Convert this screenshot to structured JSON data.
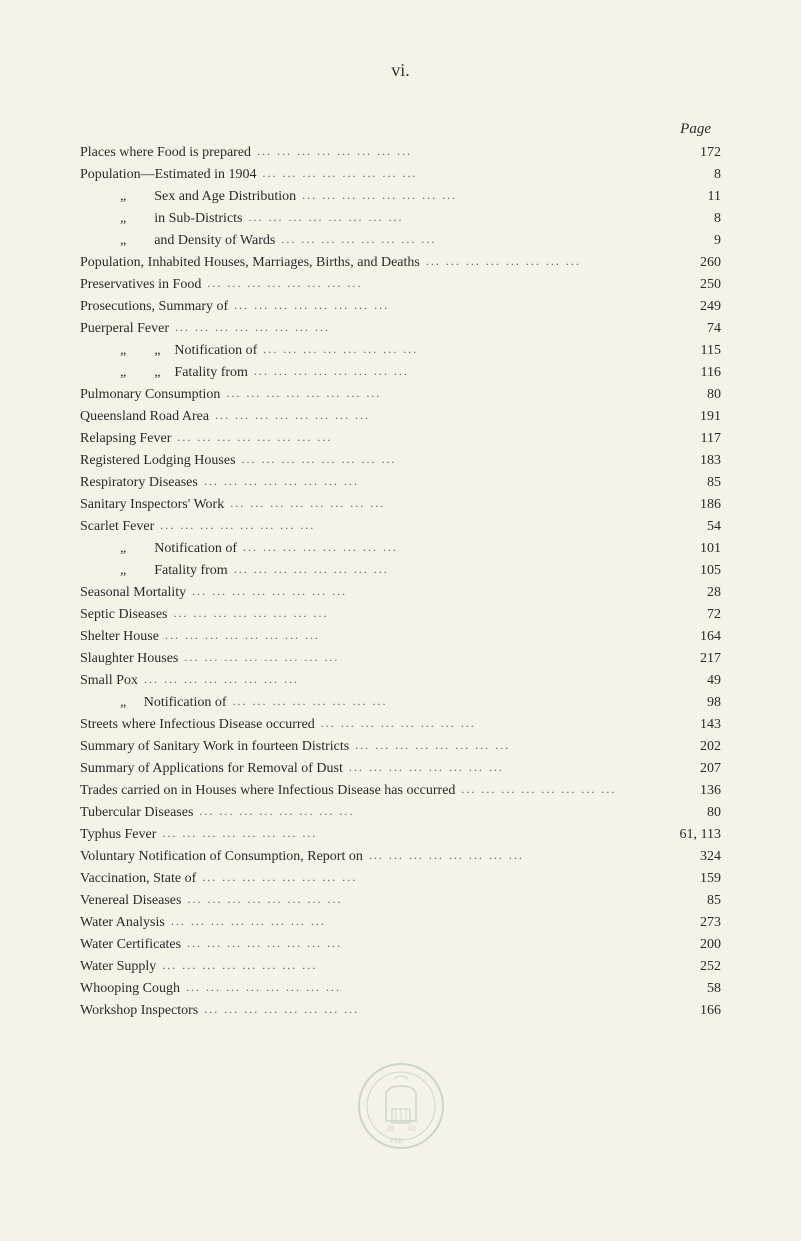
{
  "page_header_roman": "vi.",
  "page_col_heading": "Page",
  "entries": [
    {
      "label": "Places where Food is prepared",
      "page": "172",
      "indent": 0
    },
    {
      "label": "Population—Estimated in 1904",
      "page": "8",
      "indent": 0
    },
    {
      "label": "„        Sex and Age Distribution",
      "page": "11",
      "indent": 1
    },
    {
      "label": "„        in Sub-Districts",
      "page": "8",
      "indent": 1
    },
    {
      "label": "„        and Density of Wards",
      "page": "9",
      "indent": 1
    },
    {
      "label": "Population, Inhabited Houses, Marriages, Births, and Deaths",
      "page": "260",
      "indent": 0
    },
    {
      "label": "Preservatives in Food",
      "page": "250",
      "indent": 0
    },
    {
      "label": "Prosecutions, Summary of",
      "page": "249",
      "indent": 0
    },
    {
      "label": "Puerperal Fever",
      "page": "74",
      "indent": 0
    },
    {
      "label": "„        „    Notification of",
      "page": "115",
      "indent": 1
    },
    {
      "label": "„        „    Fatality from",
      "page": "116",
      "indent": 1
    },
    {
      "label": "Pulmonary Consumption",
      "page": "80",
      "indent": 0
    },
    {
      "label": "Queensland Road Area",
      "page": "191",
      "indent": 0
    },
    {
      "label": "Relapsing Fever",
      "page": "117",
      "indent": 0
    },
    {
      "label": "Registered Lodging Houses",
      "page": "183",
      "indent": 0
    },
    {
      "label": "Respiratory Diseases",
      "page": "85",
      "indent": 0
    },
    {
      "label": "Sanitary Inspectors' Work",
      "page": "186",
      "indent": 0
    },
    {
      "label": "Scarlet Fever",
      "page": "54",
      "indent": 0
    },
    {
      "label": "„        Notification of",
      "page": "101",
      "indent": 1
    },
    {
      "label": "„        Fatality from",
      "page": "105",
      "indent": 1
    },
    {
      "label": "Seasonal Mortality",
      "page": "28",
      "indent": 0
    },
    {
      "label": "Septic Diseases",
      "page": "72",
      "indent": 0
    },
    {
      "label": "Shelter House",
      "page": "164",
      "indent": 0
    },
    {
      "label": "Slaughter Houses",
      "page": "217",
      "indent": 0
    },
    {
      "label": "Small Pox",
      "page": "49",
      "indent": 0
    },
    {
      "label": "„     Notification of",
      "page": "98",
      "indent": 1
    },
    {
      "label": "Streets where Infectious Disease occurred",
      "page": "143",
      "indent": 0
    },
    {
      "label": "Summary of Sanitary Work in fourteen Districts",
      "page": "202",
      "indent": 0
    },
    {
      "label": "Summary of Applications for Removal of Dust",
      "page": "207",
      "indent": 0
    },
    {
      "label": "Trades carried on in Houses where Infectious Disease has occurred",
      "page": "136",
      "indent": 0
    },
    {
      "label": "Tubercular Diseases",
      "page": "80",
      "indent": 0
    },
    {
      "label": "Typhus Fever",
      "page": "61, 113",
      "indent": 0
    },
    {
      "label": "Voluntary Notification of Consumption, Report on",
      "page": "324",
      "indent": 0
    },
    {
      "label": "Vaccination, State of",
      "page": "159",
      "indent": 0
    },
    {
      "label": "Venereal Diseases",
      "page": "85",
      "indent": 0
    },
    {
      "label": "Water Analysis",
      "page": "273",
      "indent": 0
    },
    {
      "label": "Water Certificates",
      "page": "200",
      "indent": 0
    },
    {
      "label": "Water Supply",
      "page": "252",
      "indent": 0
    },
    {
      "label": "Whooping Cough",
      "page": "58",
      "indent": 0
    },
    {
      "label": "Workshop Inspectors",
      "page": "166",
      "indent": 0
    }
  ],
  "seal": {
    "color": "#7aa87a",
    "size": 90
  }
}
